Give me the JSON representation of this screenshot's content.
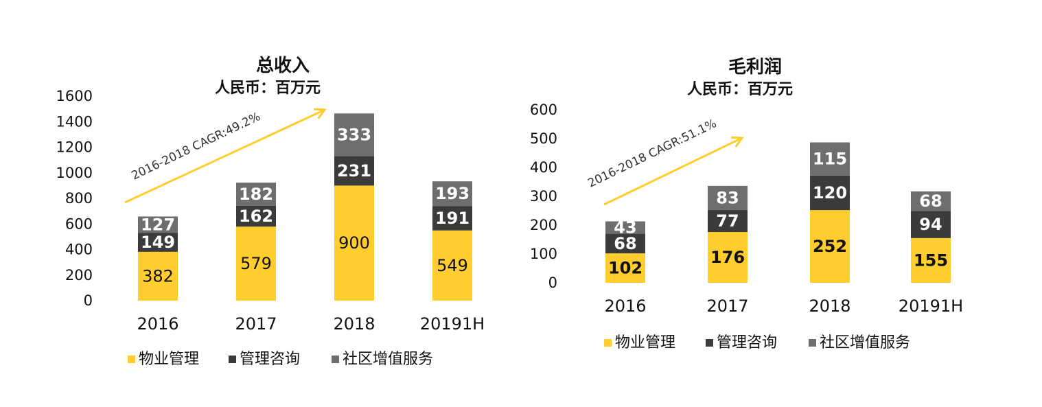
{
  "chart_data": [
    {
      "type": "bar",
      "stacked": true,
      "title": "总收入",
      "subtitle": "人民币：百万元",
      "categories": [
        "2016",
        "2017",
        "2018",
        "20191H"
      ],
      "ylim": [
        0,
        1600
      ],
      "yticks": [
        0,
        200,
        400,
        600,
        800,
        1000,
        1200,
        1400,
        1600
      ],
      "series": [
        {
          "name": "物业管理",
          "color": "#FFCD2E",
          "values": [
            382,
            579,
            900,
            549
          ]
        },
        {
          "name": "管理咨询",
          "color": "#3B3B3B",
          "values": [
            149,
            162,
            231,
            191
          ]
        },
        {
          "name": "社区增值服务",
          "color": "#6E6E6E",
          "values": [
            127,
            182,
            333,
            193
          ]
        }
      ],
      "annotation": {
        "text": "2016-2018 CAGR:49.2%",
        "color": "#FFCD2E"
      }
    },
    {
      "type": "bar",
      "stacked": true,
      "title": "毛利润",
      "subtitle": "人民币：百万元",
      "categories": [
        "2016",
        "2017",
        "2018",
        "20191H"
      ],
      "ylim": [
        0,
        600
      ],
      "yticks": [
        0,
        100,
        200,
        300,
        400,
        500,
        600
      ],
      "series": [
        {
          "name": "物业管理",
          "color": "#FFCD2E",
          "values": [
            102,
            176,
            252,
            155
          ]
        },
        {
          "name": "管理咨询",
          "color": "#3B3B3B",
          "values": [
            68,
            77,
            120,
            94
          ]
        },
        {
          "name": "社区增值服务",
          "color": "#6E6E6E",
          "values": [
            43,
            83,
            115,
            68
          ]
        }
      ],
      "annotation": {
        "text": "2016-2018 CAGR:51.1%",
        "color": "#FFCD2E"
      }
    }
  ]
}
